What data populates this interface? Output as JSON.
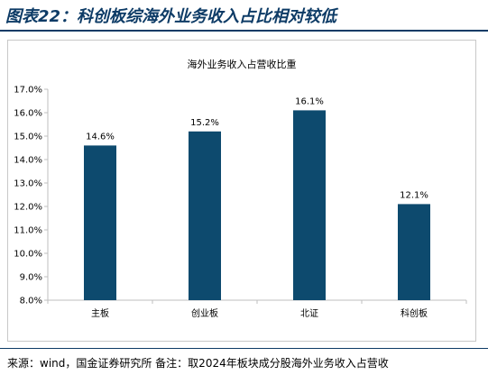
{
  "figure_title": "图表22：科创板综海外业务收入占比相对较低",
  "source_note": "来源：wind，国金证券研究所 备注：取2024年板块成分股海外业务收入占营收",
  "colors": {
    "bar": "#0d4a6e",
    "title": "#0d3b66",
    "axis": "#bfbfbf"
  },
  "chart_data": {
    "type": "bar",
    "title": "海外业务收入占营收比重",
    "xlabel": "",
    "ylabel": "",
    "categories": [
      "主板",
      "创业板",
      "北证",
      "科创板"
    ],
    "values": [
      14.6,
      15.2,
      16.1,
      12.1
    ],
    "data_labels": [
      "14.6%",
      "15.2%",
      "16.1%",
      "12.1%"
    ],
    "ylim": [
      8.0,
      17.0
    ],
    "yticks": [
      8.0,
      9.0,
      10.0,
      11.0,
      12.0,
      13.0,
      14.0,
      15.0,
      16.0,
      17.0
    ],
    "ytick_labels": [
      "8.0%",
      "9.0%",
      "10.0%",
      "11.0%",
      "12.0%",
      "13.0%",
      "14.0%",
      "15.0%",
      "16.0%",
      "17.0%"
    ],
    "grid": false,
    "legend": "none"
  }
}
